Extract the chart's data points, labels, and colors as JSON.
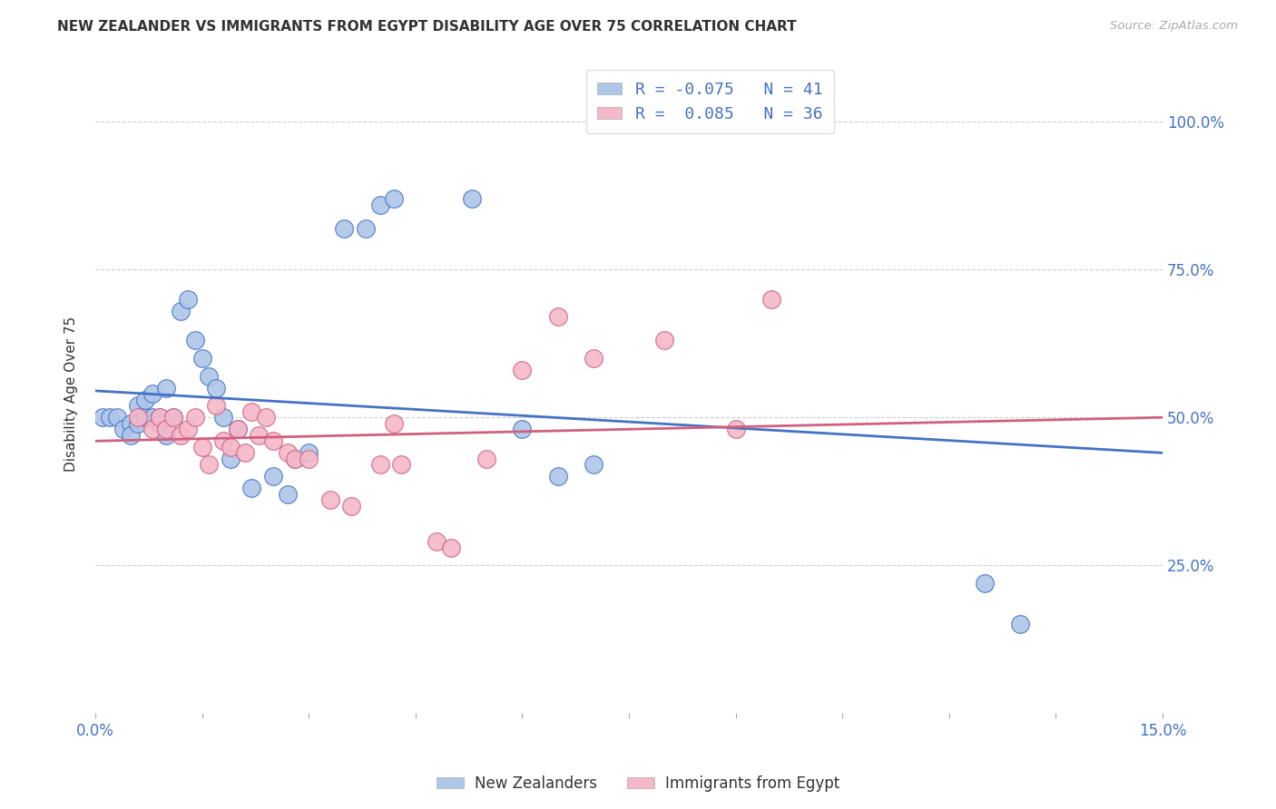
{
  "title": "NEW ZEALANDER VS IMMIGRANTS FROM EGYPT DISABILITY AGE OVER 75 CORRELATION CHART",
  "source": "Source: ZipAtlas.com",
  "ylabel": "Disability Age Over 75",
  "legend_label1": "New Zealanders",
  "legend_label2": "Immigrants from Egypt",
  "R1": -0.075,
  "N1": 41,
  "R2": 0.085,
  "N2": 36,
  "color1": "#aec6e8",
  "color2": "#f4b8c8",
  "line_color1": "#4472c4",
  "line_color2": "#d06080",
  "xmin": 0.0,
  "xmax": 0.15,
  "ymin": 0.0,
  "ymax": 1.08,
  "nz_x": [
    0.001,
    0.002,
    0.003,
    0.004,
    0.005,
    0.005,
    0.006,
    0.006,
    0.007,
    0.007,
    0.008,
    0.008,
    0.009,
    0.009,
    0.01,
    0.01,
    0.011,
    0.012,
    0.013,
    0.014,
    0.015,
    0.016,
    0.017,
    0.018,
    0.019,
    0.02,
    0.022,
    0.025,
    0.027,
    0.028,
    0.03,
    0.035,
    0.038,
    0.04,
    0.042,
    0.053,
    0.06,
    0.065,
    0.07,
    0.125,
    0.13
  ],
  "nz_y": [
    0.5,
    0.5,
    0.5,
    0.48,
    0.49,
    0.47,
    0.49,
    0.52,
    0.5,
    0.53,
    0.5,
    0.54,
    0.5,
    0.49,
    0.47,
    0.55,
    0.5,
    0.68,
    0.7,
    0.63,
    0.6,
    0.57,
    0.55,
    0.5,
    0.43,
    0.48,
    0.38,
    0.4,
    0.37,
    0.43,
    0.44,
    0.82,
    0.82,
    0.86,
    0.87,
    0.87,
    0.48,
    0.4,
    0.42,
    0.22,
    0.15
  ],
  "eg_x": [
    0.006,
    0.008,
    0.009,
    0.01,
    0.011,
    0.012,
    0.013,
    0.014,
    0.015,
    0.016,
    0.017,
    0.018,
    0.019,
    0.02,
    0.021,
    0.022,
    0.023,
    0.024,
    0.025,
    0.027,
    0.028,
    0.03,
    0.033,
    0.036,
    0.04,
    0.042,
    0.043,
    0.048,
    0.05,
    0.055,
    0.06,
    0.065,
    0.07,
    0.08,
    0.09,
    0.095
  ],
  "eg_y": [
    0.5,
    0.48,
    0.5,
    0.48,
    0.5,
    0.47,
    0.48,
    0.5,
    0.45,
    0.42,
    0.52,
    0.46,
    0.45,
    0.48,
    0.44,
    0.51,
    0.47,
    0.5,
    0.46,
    0.44,
    0.43,
    0.43,
    0.36,
    0.35,
    0.42,
    0.49,
    0.42,
    0.29,
    0.28,
    0.43,
    0.58,
    0.67,
    0.6,
    0.63,
    0.48,
    0.7
  ],
  "nz_trendline": [
    0.545,
    0.44
  ],
  "eg_trendline": [
    0.46,
    0.5
  ]
}
